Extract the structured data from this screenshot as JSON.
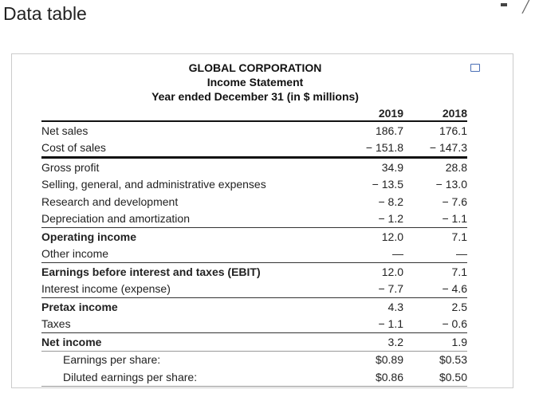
{
  "window": {
    "title": "Data table"
  },
  "statement": {
    "company": "GLOBAL  CORPORATION",
    "name": "Income Statement",
    "period": "Year ended December 31 (in $ millions)",
    "years": [
      "2019",
      "2018"
    ]
  },
  "rows": [
    {
      "label": "Net sales",
      "v2019": "186.7",
      "v2018": "176.1",
      "bold": false
    },
    {
      "label": "Cost of sales",
      "v2019": "− 151.8",
      "v2018": "− 147.3",
      "bold": false
    },
    {
      "label": "Gross profit",
      "v2019": "34.9",
      "v2018": "28.8",
      "bold": false
    },
    {
      "label": "Selling, general, and administrative expenses",
      "v2019": "− 13.5",
      "v2018": "− 13.0",
      "bold": false
    },
    {
      "label": "Research and development",
      "v2019": "− 8.2",
      "v2018": "− 7.6",
      "bold": false
    },
    {
      "label": "Depreciation and amortization",
      "v2019": "− 1.2",
      "v2018": "− 1.1",
      "bold": false
    },
    {
      "label": "Operating income",
      "v2019": "12.0",
      "v2018": "7.1",
      "bold": true
    },
    {
      "label": "Other income",
      "v2019": "—",
      "v2018": "—",
      "bold": false
    },
    {
      "label": "Earnings before interest and taxes (EBIT)",
      "v2019": "12.0",
      "v2018": "7.1",
      "bold": true
    },
    {
      "label": "Interest income (expense)",
      "v2019": "− 7.7",
      "v2018": "− 4.6",
      "bold": false
    },
    {
      "label": "Pretax income",
      "v2019": "4.3",
      "v2018": "2.5",
      "bold": true
    },
    {
      "label": "Taxes",
      "v2019": "− 1.1",
      "v2018": "− 0.6",
      "bold": false
    },
    {
      "label": "Net income",
      "v2019": "3.2",
      "v2018": "1.9",
      "bold": true
    },
    {
      "label": "Earnings per share:",
      "v2019": "$0.89",
      "v2018": "$0.53",
      "bold": false,
      "indent": true
    },
    {
      "label": "Diluted earnings per share:",
      "v2019": "$0.86",
      "v2018": "$0.50",
      "bold": false,
      "indent": true
    }
  ]
}
